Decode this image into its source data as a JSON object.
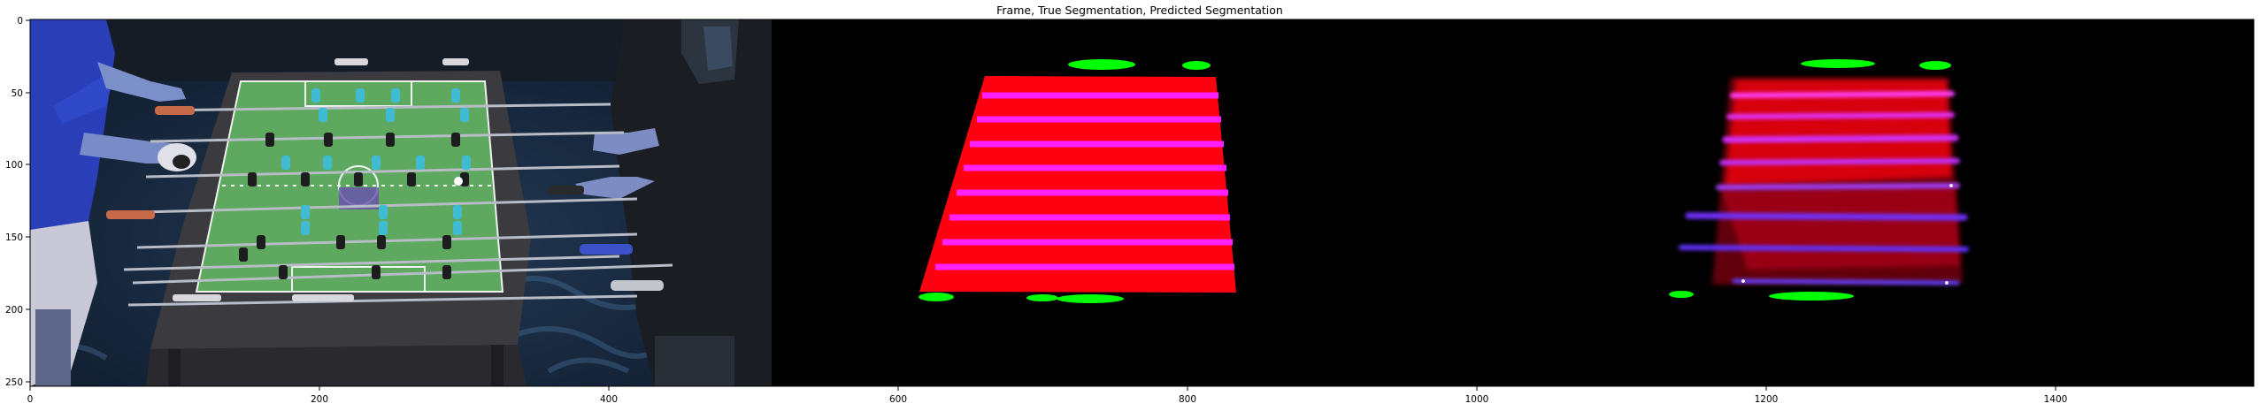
{
  "title": "Frame, True Segmentation, Predicted Segmentation",
  "axes": {
    "x_ticks": [
      "0",
      "200",
      "400",
      "600",
      "800",
      "1000",
      "1200",
      "1400"
    ],
    "y_ticks": [
      "0",
      "50",
      "100",
      "150",
      "200",
      "250"
    ]
  },
  "panels": [
    {
      "name": "frame",
      "content": "foosball table camera frame"
    },
    {
      "name": "true-segmentation",
      "content": "ground-truth segmentation mask"
    },
    {
      "name": "predicted-segmentation",
      "content": "predicted segmentation mask"
    }
  ],
  "colors": {
    "field_red": "#ff0010",
    "rod_magenta": "#ff20ff",
    "ball_green": "#00ff00",
    "background": "#000000",
    "table_green": "#5fa860"
  }
}
